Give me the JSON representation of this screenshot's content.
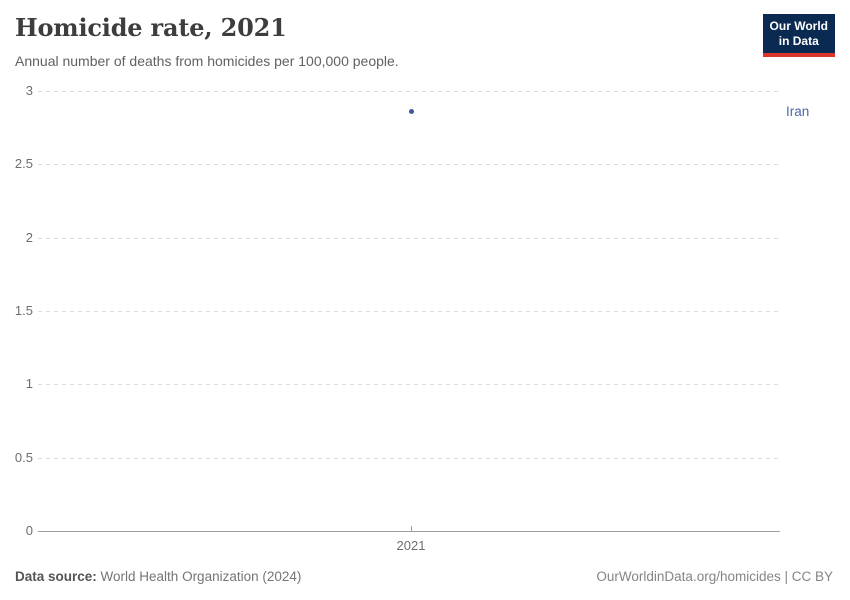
{
  "header": {
    "title": "Homicide rate, 2021",
    "subtitle": "Annual number of deaths from homicides per 100,000 people.",
    "logo": {
      "line1": "Our World",
      "line2": "in Data"
    }
  },
  "chart_data": {
    "type": "scatter",
    "title": "Homicide rate, 2021",
    "x": [
      2021
    ],
    "xticks": [
      2021
    ],
    "series": [
      {
        "name": "Iran",
        "values": [
          2.86
        ],
        "color": "#3d5a9e",
        "label_color": "#4a69a8"
      }
    ],
    "xlabel": "",
    "ylabel": "",
    "ylim": [
      0,
      3
    ],
    "yticks": [
      0,
      0.5,
      1,
      1.5,
      2,
      2.5,
      3
    ],
    "grid": "horizontal-dashed",
    "legend_position": "entity-label-right"
  },
  "footer": {
    "source_label": "Data source:",
    "source_text": " World Health Organization (2024)",
    "attribution": "OurWorldinData.org/homicides | CC BY"
  },
  "colors": {
    "logo_navy": "#0b2a51",
    "logo_red": "#dc352c",
    "gridline": "#dcdcdc",
    "axis": "#9e9e9e",
    "point": "#3d5a9e"
  }
}
